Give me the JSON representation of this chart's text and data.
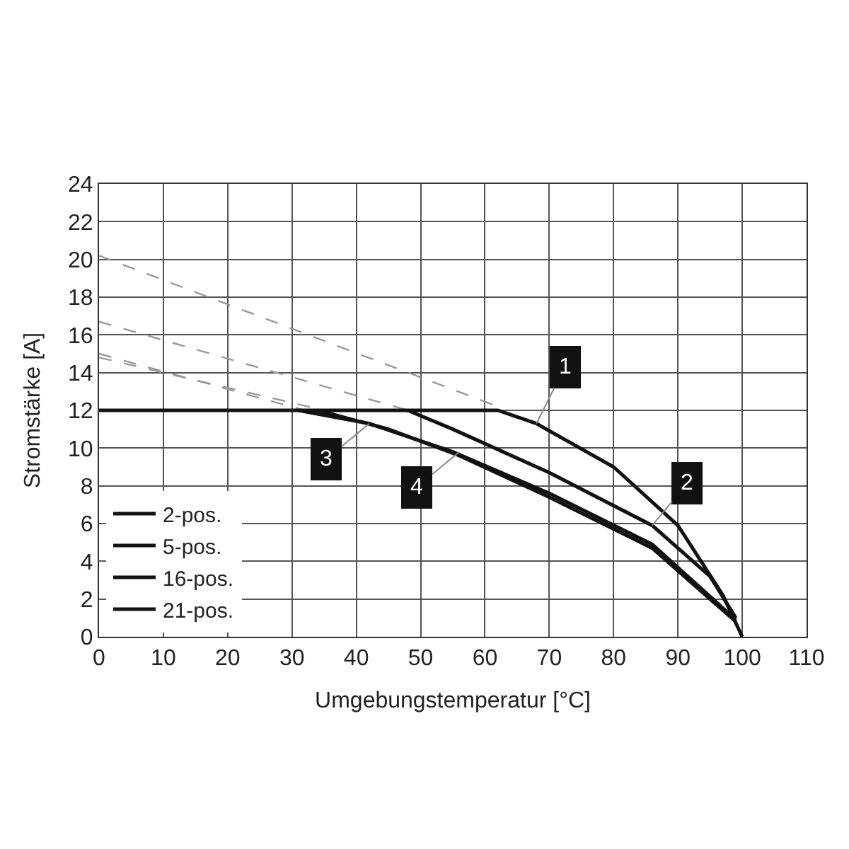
{
  "chart_data": {
    "type": "line",
    "xlabel": "Umgebungstemperatur [°C]",
    "ylabel": "Stromstärke [A]",
    "xlim": [
      0,
      110
    ],
    "xticks": [
      0,
      10,
      20,
      30,
      40,
      50,
      60,
      70,
      80,
      90,
      100,
      110
    ],
    "ylim": [
      0,
      24
    ],
    "yticks": [
      0,
      2,
      4,
      6,
      8,
      10,
      12,
      14,
      16,
      18,
      20,
      22,
      24
    ],
    "grid": true,
    "legend": "bottom left",
    "marker": "none",
    "series": [
      {
        "x": [
          0,
          62
        ],
        "values": [
          20.2,
          12.2
        ],
        "color": "#999999",
        "line_style": "dashed"
      },
      {
        "x": [
          0,
          48
        ],
        "values": [
          16.7,
          12
        ],
        "color": "#999999",
        "line_style": "dashed"
      },
      {
        "x": [
          0,
          32
        ],
        "values": [
          15.0,
          12
        ],
        "color": "#999999",
        "line_style": "dashed"
      },
      {
        "x": [
          0,
          35
        ],
        "values": [
          14.8,
          12
        ],
        "color": "#999999",
        "line_style": "dashed"
      },
      {
        "name": "2-pos.",
        "x": [
          0,
          62,
          68,
          80,
          90,
          97,
          100
        ],
        "values": [
          12,
          12,
          11.3,
          9.0,
          5.9,
          2.2,
          0
        ],
        "color": "#111111",
        "line_style": "solid"
      },
      {
        "name": "5-pos.",
        "x": [
          48,
          55,
          70,
          86,
          95,
          99
        ],
        "values": [
          12,
          11.0,
          8.7,
          5.9,
          3.2,
          1.0
        ],
        "color": "#111111",
        "line_style": "solid"
      },
      {
        "name": "16-pos.",
        "x": [
          31,
          42,
          55,
          70,
          86,
          99
        ],
        "values": [
          12,
          11.3,
          9.8,
          7.6,
          4.9,
          0.9
        ],
        "color": "#111111",
        "line_style": "solid"
      },
      {
        "name": "21-pos.",
        "x": [
          34,
          45,
          56,
          70,
          86,
          99
        ],
        "values": [
          12,
          11.0,
          9.6,
          7.4,
          4.7,
          0.8
        ],
        "color": "#111111",
        "line_style": "solid"
      }
    ],
    "annotations": [
      {
        "text": "1",
        "x": 68,
        "y": 11.3
      },
      {
        "text": "2",
        "x": 86,
        "y": 5.9
      },
      {
        "text": "3",
        "x": 42,
        "y": 11.3
      },
      {
        "text": "4",
        "x": 56,
        "y": 9.8
      }
    ]
  }
}
